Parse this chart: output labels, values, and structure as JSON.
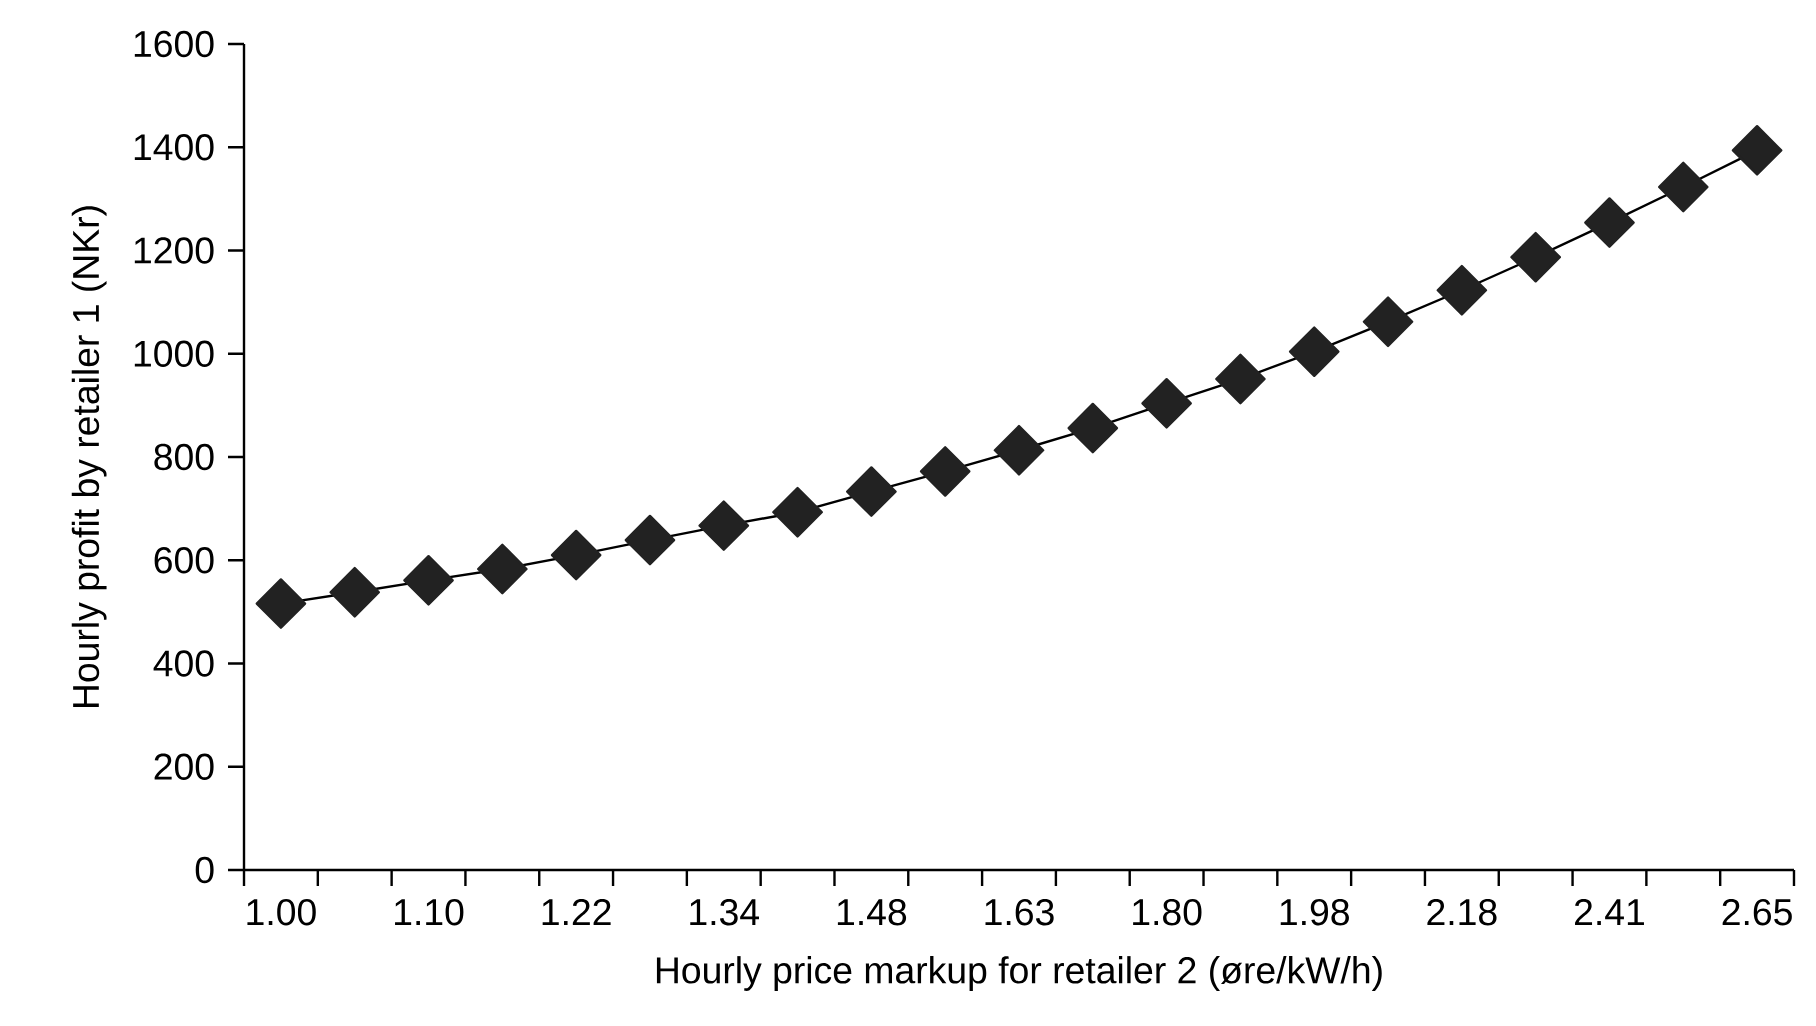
{
  "chart_data": {
    "type": "line",
    "xlabel": "Hourly price markup for retailer 2 (øre/kW/h)",
    "ylabel": "Hourly profit by retailer 1 (NKr)",
    "categories": [
      "1.00",
      null,
      "1.10",
      null,
      "1.22",
      null,
      "1.34",
      null,
      "1.48",
      null,
      "1.63",
      null,
      "1.80",
      null,
      "1.98",
      null,
      "2.18",
      null,
      "2.41",
      null,
      "2.65"
    ],
    "series": [
      {
        "color": "#222222",
        "values": [
          516,
          538,
          561,
          583,
          610,
          639,
          667,
          693,
          733,
          772,
          813,
          856,
          904,
          951,
          1004,
          1062,
          1123,
          1187,
          1254,
          1323,
          1394
        ]
      }
    ],
    "ylim": [
      0,
      1600
    ],
    "yticks": [
      0,
      200,
      400,
      600,
      800,
      1000,
      1200,
      1400,
      1600
    ],
    "marker": "diamond",
    "line_style": "solid"
  }
}
